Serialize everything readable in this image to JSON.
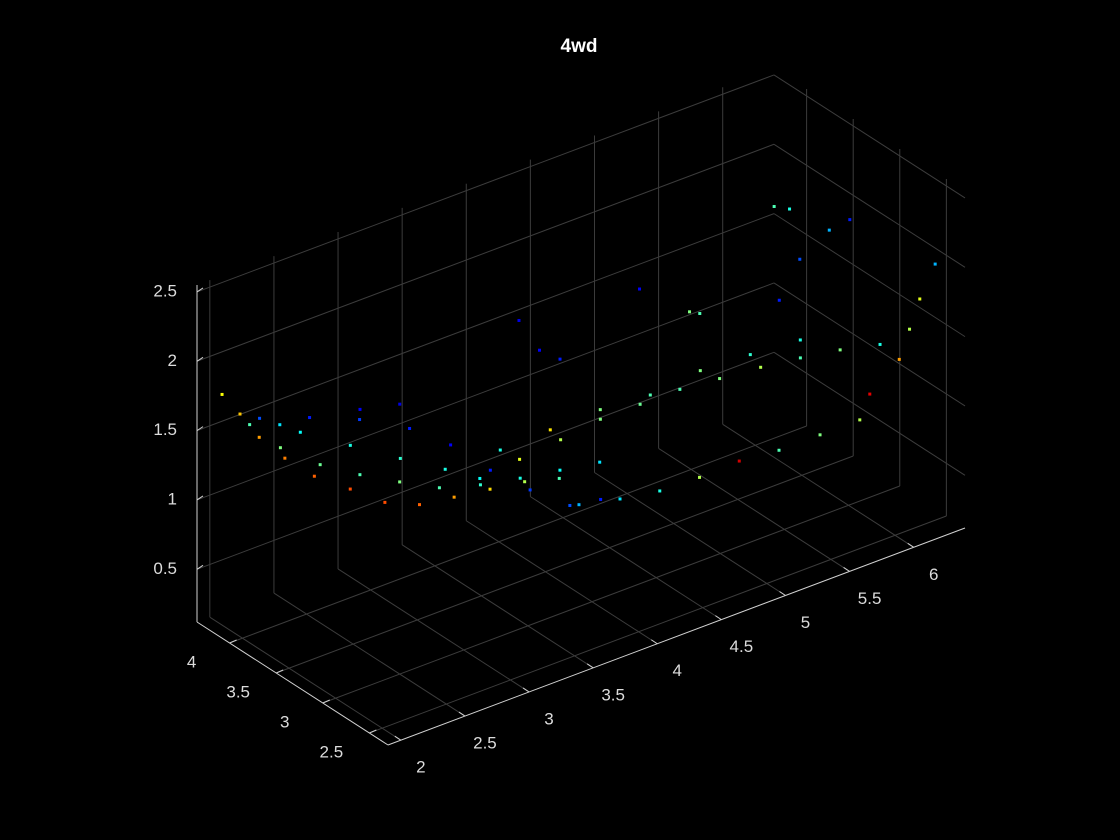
{
  "chart_data": {
    "type": "scatter3",
    "title": "4wd",
    "x": [
      1.95,
      2.09,
      2.24,
      2.44,
      2.67,
      2.95,
      3.22,
      3.49,
      3.76,
      4.04,
      4.31,
      4.58,
      1.94,
      2.18,
      2.49,
      2.8,
      3.11,
      3.42,
      3.74,
      4.05,
      4.36,
      4.67,
      1.95,
      2.11,
      2.5,
      2.89,
      3.24,
      3.51,
      2.09,
      2.48,
      2.87,
      3.26,
      3.58,
      3.89,
      4.2,
      4.51,
      4.75,
      3.84,
      4.16,
      4.47,
      4.78,
      5.09,
      5.4,
      5.72,
      6.03,
      3.82,
      4.14,
      4.45,
      4.76,
      5.07,
      5.38,
      5.7,
      6.01,
      6.32,
      4.04,
      4.43,
      4.82,
      5.21,
      5.6,
      5.99,
      6.38,
      5.89,
      6.12,
      6.2,
      6.32,
      6.04,
      5.81,
      5.66,
      5.78,
      6.09,
      6.25,
      5.0,
      5.08,
      4.61,
      3.67,
      3.83,
      3.99,
      5.86,
      5.7,
      2.43,
      2.74
    ],
    "y": [
      4.15,
      4.15,
      4.15,
      4.15,
      4.15,
      4.15,
      4.15,
      4.15,
      4.15,
      4.15,
      4.15,
      4.15,
      3.84,
      3.84,
      3.84,
      3.84,
      3.84,
      3.84,
      3.84,
      3.84,
      3.84,
      3.84,
      3.53,
      3.53,
      3.53,
      3.53,
      3.53,
      3.53,
      3.94,
      3.94,
      3.94,
      3.94,
      3.94,
      3.94,
      3.94,
      3.94,
      3.94,
      2.92,
      2.92,
      2.92,
      2.92,
      2.92,
      2.92,
      2.92,
      2.92,
      3.53,
      3.53,
      3.53,
      3.53,
      3.53,
      3.53,
      3.53,
      3.53,
      3.53,
      4.04,
      4.04,
      4.04,
      4.04,
      4.04,
      4.04,
      4.04,
      2.51,
      2.51,
      2.51,
      2.51,
      2.51,
      2.51,
      3.33,
      3.33,
      3.33,
      3.33,
      3.33,
      3.33,
      3.33,
      3.33,
      3.33,
      3.33,
      3.33,
      3.33,
      3.33,
      3.33
    ],
    "z": [
      1.83,
      1.64,
      1.42,
      1.2,
      0.99,
      0.8,
      0.61,
      0.5,
      0.46,
      0.42,
      0.38,
      0.31,
      1.75,
      1.5,
      1.27,
      1.09,
      0.93,
      0.78,
      0.69,
      0.63,
      0.58,
      0.53,
      1.88,
      1.77,
      1.54,
      1.31,
      1.11,
      0.95,
      1.7,
      1.57,
      1.42,
      1.22,
      0.99,
      0.7,
      0.45,
      0.23,
      0.19,
      0.91,
      0.84,
      0.79,
      0.78,
      0.79,
      0.76,
      0.76,
      0.76,
      0.98,
      1.01,
      1.05,
      1.05,
      1.05,
      1.02,
      0.99,
      0.95,
      0.9,
      0.75,
      0.76,
      0.77,
      0.74,
      0.78,
      0.76,
      0.73,
      1.53,
      1.56,
      1.75,
      1.96,
      1.37,
      1.2,
      2.25,
      2.19,
      1.93,
      1.95,
      1.72,
      1.68,
      2.02,
      2.12,
      1.85,
      1.73,
      1.8,
      1.56,
      1.91,
      1.84
    ],
    "c": [
      0.62,
      0.68,
      0.72,
      0.75,
      0.78,
      0.8,
      0.8,
      0.78,
      0.72,
      0.66,
      0.55,
      0.45,
      0.45,
      0.5,
      0.48,
      0.45,
      0.5,
      0.45,
      0.42,
      0.4,
      0.38,
      0.35,
      0.35,
      0.38,
      0.4,
      0.42,
      0.4,
      0.38,
      0.2,
      0.15,
      0.18,
      0.15,
      0.12,
      0.15,
      0.18,
      0.2,
      0.15,
      0.3,
      0.35,
      0.4,
      0.55,
      0.92,
      0.45,
      0.5,
      0.55,
      0.6,
      0.55,
      0.5,
      0.48,
      0.45,
      0.5,
      0.55,
      0.45,
      0.5,
      0.4,
      0.65,
      0.5,
      0.45,
      0.5,
      0.42,
      0.4,
      0.4,
      0.55,
      0.6,
      0.3,
      0.72,
      0.9,
      0.45,
      0.4,
      0.3,
      0.15,
      0.5,
      0.45,
      0.12,
      0.1,
      0.12,
      0.15,
      0.2,
      0.15,
      0.12,
      0.1
    ],
    "colormap": "jet",
    "clim": [
      0,
      1
    ],
    "xlim": [
      1.9,
      6.4
    ],
    "ylim": [
      2.3,
      4.35
    ],
    "zlim": [
      0.12,
      2.55
    ],
    "xticks": [
      2,
      2.5,
      3,
      3.5,
      4,
      4.5,
      5,
      5.5,
      6
    ],
    "yticks": [
      2.5,
      3,
      3.5,
      4
    ],
    "zticks": [
      0.5,
      1,
      1.5,
      2,
      2.5
    ],
    "grid": true
  }
}
